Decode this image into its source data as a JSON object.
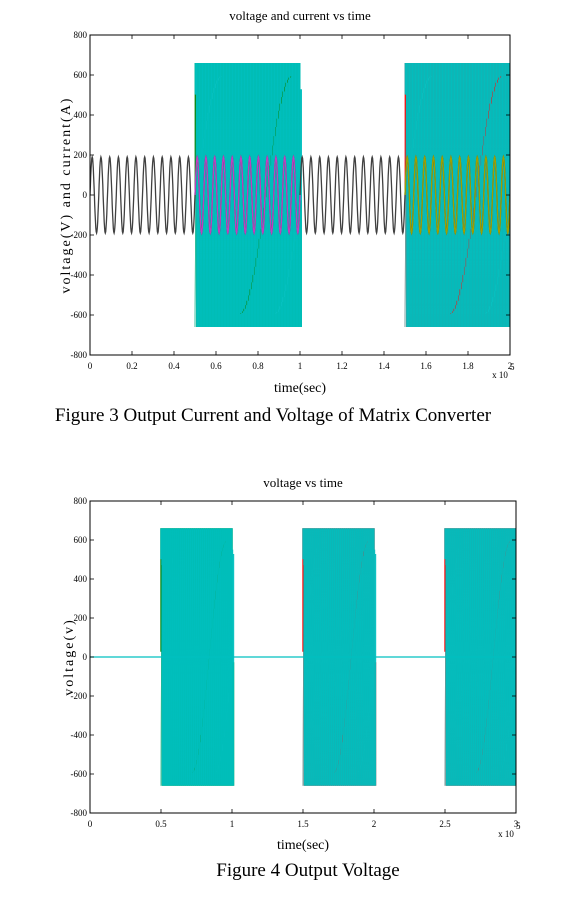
{
  "chart_data": [
    {
      "type": "line",
      "title": "voltage and current vs time",
      "xlabel": "time(sec)",
      "ylabel": "voltage(V) and current(A)",
      "x_multiplier": "x 10^5",
      "x_multiplier_base": "x 10",
      "x_multiplier_exp": "5",
      "xlim": [
        0,
        2
      ],
      "ylim": [
        -800,
        800
      ],
      "xticks": [
        "0",
        "0.2",
        "0.4",
        "0.6",
        "0.8",
        "1",
        "1.2",
        "1.4",
        "1.6",
        "1.8",
        "2"
      ],
      "yticks": [
        "800",
        "600",
        "400",
        "200",
        "0",
        "-200",
        "-400",
        "-600",
        "-800"
      ],
      "colors": {
        "green": "#008000",
        "cyan": "#00c0c0",
        "red": "#ff0000",
        "current": "#404040",
        "magenta": "#c040c0",
        "olive": "#a0a000"
      },
      "series": [
        {
          "color": "green",
          "kind": "pwm_envelope",
          "x": [
            0.5,
            1.0
          ],
          "amplitude": 660,
          "phase": 0
        },
        {
          "color": "cyan",
          "kind": "pwm_envelope",
          "x": [
            0.5,
            1.0
          ],
          "amplitude": 660,
          "phase": 2.09
        },
        {
          "color": "red",
          "kind": "pwm_envelope",
          "x": [
            1.5,
            2.0
          ],
          "amplitude": 660,
          "phase": 0
        },
        {
          "color": "cyan",
          "kind": "pwm_envelope",
          "x": [
            1.5,
            2.0
          ],
          "amplitude": 660,
          "phase": 2.09
        },
        {
          "color": "current",
          "kind": "sine",
          "x": [
            0,
            2
          ],
          "amplitude": 190,
          "cycles": 48
        },
        {
          "color": "magenta",
          "kind": "sine",
          "x": [
            0.5,
            1.0
          ],
          "amplitude": 190,
          "cycles": 12
        },
        {
          "color": "olive",
          "kind": "sine",
          "x": [
            1.5,
            2.0
          ],
          "amplitude": 190,
          "cycles": 12
        }
      ]
    },
    {
      "type": "line",
      "title": "voltage vs time",
      "xlabel": "time(sec)",
      "ylabel": "voltage(v)",
      "x_multiplier": "x 10^5",
      "x_multiplier_base": "x 10",
      "x_multiplier_exp": "5",
      "xlim": [
        0,
        3
      ],
      "ylim": [
        -800,
        800
      ],
      "xticks": [
        "0",
        "0.5",
        "1",
        "1.5",
        "2",
        "2.5",
        "3"
      ],
      "yticks": [
        "800",
        "600",
        "400",
        "200",
        "0",
        "-200",
        "-400",
        "-600",
        "-800"
      ],
      "colors": {
        "green": "#008000",
        "cyan": "#00c0c0",
        "red": "#ff0000"
      },
      "series": [
        {
          "color": "green",
          "kind": "pwm_envelope",
          "x": [
            0.5,
            1.0
          ],
          "amplitude": 660,
          "phase": 0
        },
        {
          "color": "cyan",
          "kind": "pwm_envelope",
          "x": [
            0.5,
            1.0
          ],
          "amplitude": 660,
          "phase": 2.09
        },
        {
          "color": "red",
          "kind": "pwm_envelope",
          "x": [
            1.5,
            2.0
          ],
          "amplitude": 660,
          "phase": 0
        },
        {
          "color": "cyan",
          "kind": "pwm_envelope",
          "x": [
            1.5,
            2.0
          ],
          "amplitude": 660,
          "phase": 2.09
        },
        {
          "color": "red",
          "kind": "pwm_envelope",
          "x": [
            2.5,
            3.0
          ],
          "amplitude": 660,
          "phase": 0
        },
        {
          "color": "cyan",
          "kind": "pwm_envelope",
          "x": [
            2.5,
            3.0
          ],
          "amplitude": 660,
          "phase": 2.09
        },
        {
          "color": "cyan",
          "kind": "zero_line",
          "x": [
            0,
            3
          ],
          "value": 0
        }
      ]
    }
  ],
  "captions": {
    "fig1": "Figure 3  Output Current and Voltage of Matrix Converter",
    "fig2": "Figure 4 Output Voltage"
  }
}
